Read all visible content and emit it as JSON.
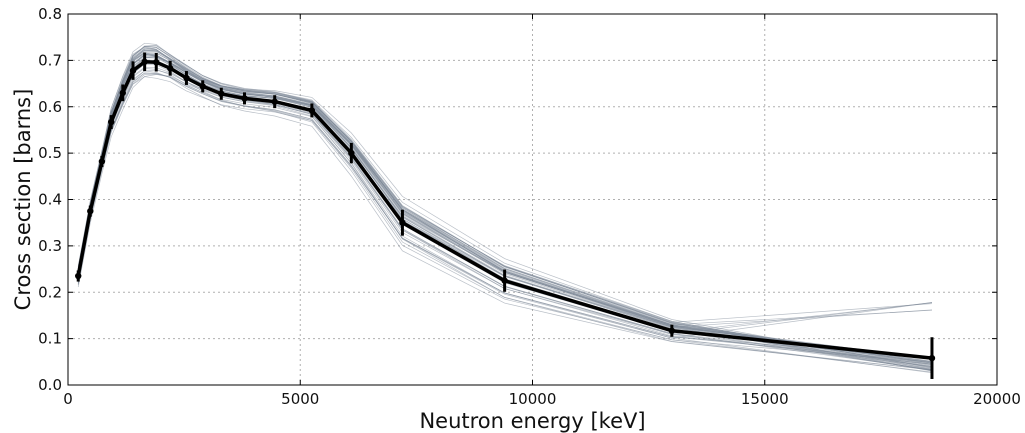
{
  "chart_data": {
    "type": "line",
    "title": "",
    "xlabel": "Neutron energy [keV]",
    "ylabel": "Cross section [barns]",
    "xlim": [
      0,
      20000
    ],
    "ylim": [
      0.0,
      0.8
    ],
    "xticks": [
      0,
      5000,
      10000,
      15000,
      20000
    ],
    "xtick_labels": [
      "0",
      "5000",
      "10000",
      "15000",
      "20000"
    ],
    "yticks": [
      0.0,
      0.1,
      0.2,
      0.3,
      0.4,
      0.5,
      0.6,
      0.7,
      0.8
    ],
    "ytick_labels": [
      "0.0",
      "0.1",
      "0.2",
      "0.3",
      "0.4",
      "0.5",
      "0.6",
      "0.7",
      "0.8"
    ],
    "grid": true,
    "grid_style": "dotted",
    "colors": {
      "mean": "#000000",
      "samples": "#7f8a99",
      "grid": "#b0b0b0"
    },
    "series": [
      {
        "values": [
          {
            "x": 220,
            "y": 0.235,
            "err": 0.012
          },
          {
            "x": 480,
            "y": 0.375,
            "err": 0.012
          },
          {
            "x": 730,
            "y": 0.482,
            "err": 0.012
          },
          {
            "x": 930,
            "y": 0.567,
            "err": 0.015
          },
          {
            "x": 1180,
            "y": 0.63,
            "err": 0.018
          },
          {
            "x": 1400,
            "y": 0.678,
            "err": 0.02
          },
          {
            "x": 1650,
            "y": 0.697,
            "err": 0.02
          },
          {
            "x": 1900,
            "y": 0.696,
            "err": 0.02
          },
          {
            "x": 2200,
            "y": 0.683,
            "err": 0.016
          },
          {
            "x": 2550,
            "y": 0.662,
            "err": 0.015
          },
          {
            "x": 2900,
            "y": 0.644,
            "err": 0.013
          },
          {
            "x": 3300,
            "y": 0.628,
            "err": 0.013
          },
          {
            "x": 3800,
            "y": 0.618,
            "err": 0.013
          },
          {
            "x": 4450,
            "y": 0.611,
            "err": 0.014
          },
          {
            "x": 5250,
            "y": 0.592,
            "err": 0.015
          },
          {
            "x": 6100,
            "y": 0.5,
            "err": 0.022
          },
          {
            "x": 7200,
            "y": 0.35,
            "err": 0.028
          },
          {
            "x": 9400,
            "y": 0.225,
            "err": 0.024
          },
          {
            "x": 13000,
            "y": 0.117,
            "err": 0.013
          },
          {
            "x": 18600,
            "y": 0.058,
            "err": 0.045
          }
        ]
      }
    ]
  }
}
